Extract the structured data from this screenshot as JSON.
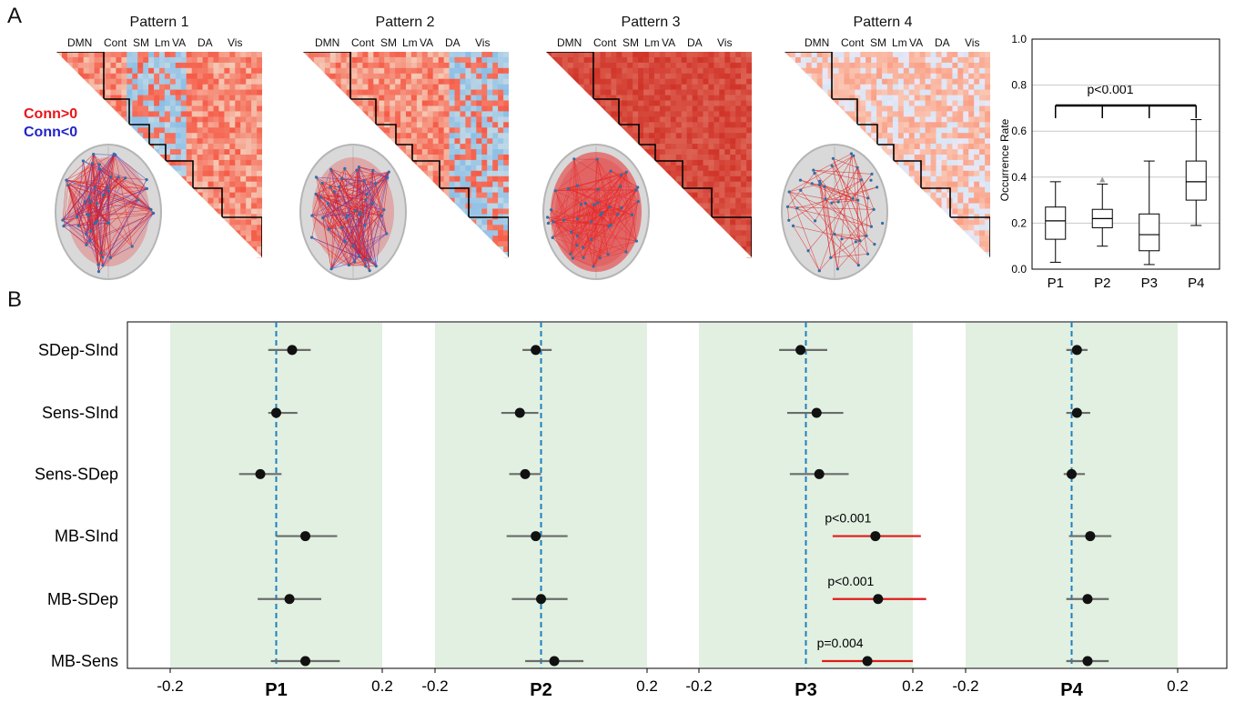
{
  "panels": {
    "a_label": "A",
    "b_label": "B"
  },
  "patterns": [
    {
      "title": "Pattern 1",
      "style": "mixed"
    },
    {
      "title": "Pattern 2",
      "style": "mixed"
    },
    {
      "title": "Pattern 3",
      "style": "positive"
    },
    {
      "title": "Pattern 4",
      "style": "weak"
    }
  ],
  "network_labels": [
    "DMN",
    "Cont",
    "SM",
    "Lm",
    "VA",
    "DA",
    "Vis"
  ],
  "conn_legend": {
    "positive": "Conn>0",
    "negative": "Conn<0",
    "positive_color": "#e8151a",
    "negative_color": "#2323c8"
  },
  "chart_data": [
    {
      "type": "box",
      "categories": [
        "P1",
        "P2",
        "P3",
        "P4"
      ],
      "ylabel": "Occurrence Rate",
      "ylim": [
        0,
        1.0
      ],
      "yticks": [
        "0.0",
        "0.2",
        "0.4",
        "0.6",
        "0.8",
        "1.0"
      ],
      "grid": true,
      "boxes": [
        {
          "min": 0.03,
          "q1": 0.13,
          "median": 0.21,
          "q3": 0.27,
          "max": 0.38,
          "outliers": []
        },
        {
          "min": 0.1,
          "q1": 0.18,
          "median": 0.22,
          "q3": 0.26,
          "max": 0.37,
          "outliers": [
            0.39
          ]
        },
        {
          "min": 0.02,
          "q1": 0.08,
          "median": 0.15,
          "q3": 0.24,
          "max": 0.47,
          "outliers": []
        },
        {
          "min": 0.19,
          "q1": 0.3,
          "median": 0.38,
          "q3": 0.47,
          "max": 0.65,
          "outliers": []
        }
      ],
      "annotation": "p<0.001"
    },
    {
      "type": "forest",
      "rows": [
        "SDep-SInd",
        "Sens-SInd",
        "Sens-SDep",
        "MB-SInd",
        "MB-SDep",
        "MB-Sens"
      ],
      "panels": [
        {
          "label": "P1",
          "tick_labels": [
            "-0.2",
            "0.2"
          ],
          "xlim": [
            -0.2,
            0.2
          ],
          "estimates": [
            0.03,
            0.0,
            -0.03,
            0.055,
            0.025,
            0.055
          ],
          "ci_low": [
            -0.015,
            -0.015,
            -0.07,
            0.0,
            -0.035,
            -0.01
          ],
          "ci_high": [
            0.065,
            0.04,
            0.01,
            0.115,
            0.085,
            0.12
          ],
          "significant": [
            false,
            false,
            false,
            false,
            false,
            false
          ],
          "labels": [
            "",
            "",
            "",
            "",
            "",
            ""
          ]
        },
        {
          "label": "P2",
          "tick_labels": [
            "-0.2",
            "0.2"
          ],
          "xlim": [
            -0.2,
            0.2
          ],
          "estimates": [
            -0.01,
            -0.04,
            -0.03,
            -0.01,
            0.0,
            0.025
          ],
          "ci_low": [
            -0.035,
            -0.075,
            -0.06,
            -0.065,
            -0.055,
            -0.03
          ],
          "ci_high": [
            0.02,
            -0.005,
            0.0,
            0.05,
            0.05,
            0.08
          ],
          "significant": [
            false,
            false,
            false,
            false,
            false,
            false
          ],
          "labels": [
            "",
            "",
            "",
            "",
            "",
            ""
          ]
        },
        {
          "label": "P3",
          "tick_labels": [
            "-0.2",
            "0.2"
          ],
          "xlim": [
            -0.2,
            0.2
          ],
          "estimates": [
            -0.01,
            0.02,
            0.025,
            0.13,
            0.135,
            0.115
          ],
          "ci_low": [
            -0.05,
            -0.035,
            -0.03,
            0.05,
            0.05,
            0.03
          ],
          "ci_high": [
            0.04,
            0.07,
            0.08,
            0.215,
            0.225,
            0.2
          ],
          "significant": [
            false,
            false,
            false,
            true,
            true,
            true
          ],
          "labels": [
            "",
            "",
            "",
            "p<0.001",
            "p<0.001",
            "p=0.004"
          ]
        },
        {
          "label": "P4",
          "tick_labels": [
            "-0.2",
            "0.2"
          ],
          "xlim": [
            -0.2,
            0.2
          ],
          "estimates": [
            0.01,
            0.01,
            0.0,
            0.035,
            0.03,
            0.03
          ],
          "ci_low": [
            -0.01,
            -0.01,
            -0.015,
            -0.005,
            -0.01,
            -0.01
          ],
          "ci_high": [
            0.03,
            0.035,
            0.025,
            0.075,
            0.07,
            0.07
          ],
          "significant": [
            false,
            false,
            false,
            false,
            false,
            false
          ],
          "labels": [
            "",
            "",
            "",
            "",
            "",
            ""
          ]
        }
      ]
    }
  ]
}
